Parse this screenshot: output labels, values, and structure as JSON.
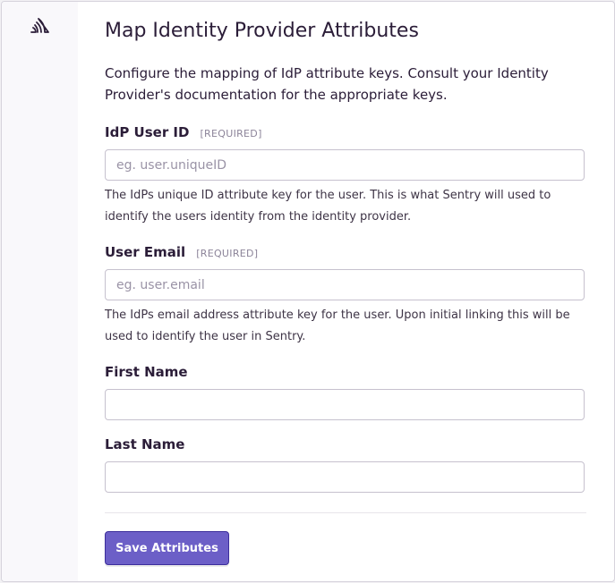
{
  "title": "Map Identity Provider Attributes",
  "description": "Configure the mapping of IdP attribute keys. Consult your Identity Provider's documentation for the appropriate keys.",
  "required_tag": "[REQUIRED]",
  "fields": [
    {
      "label": "IdP User ID",
      "required": true,
      "value": "",
      "placeholder": "eg. user.uniqueID",
      "help": "The IdPs unique ID attribute key for the user. This is what Sentry will used to identify the users identity from the identity provider."
    },
    {
      "label": "User Email",
      "required": true,
      "value": "",
      "placeholder": "eg. user.email",
      "help": "The IdPs email address attribute key for the user. Upon initial linking this will be used to identify the user in Sentry."
    },
    {
      "label": "First Name",
      "required": false,
      "value": "",
      "placeholder": ""
    },
    {
      "label": "Last Name",
      "required": false,
      "value": "",
      "placeholder": ""
    }
  ],
  "submit_label": "Save Attributes",
  "logo_icon": "sentry-logo-icon",
  "colors": {
    "accent": "#6c5fc7",
    "sidebar": "#f9f8fb"
  }
}
